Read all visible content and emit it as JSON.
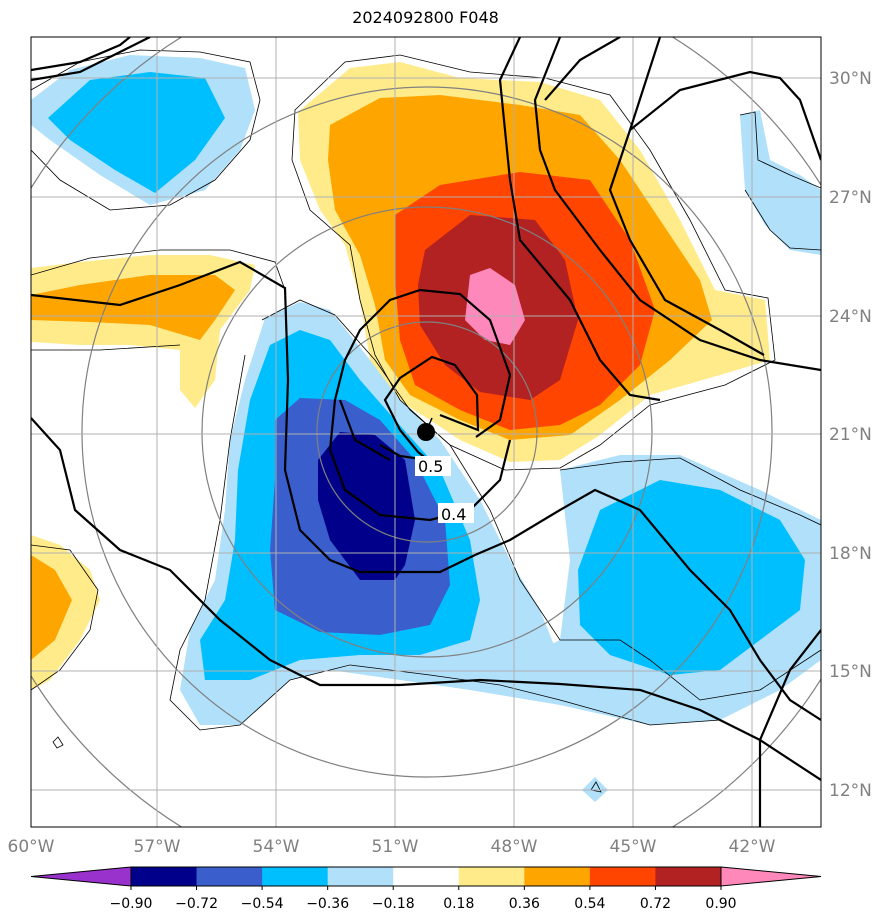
{
  "title": "2024092800 F048",
  "map": {
    "lon_labels": [
      "60°W",
      "57°W",
      "54°W",
      "51°W",
      "48°W",
      "45°W",
      "42°W"
    ],
    "lat_labels": [
      "30°N",
      "27°N",
      "24°N",
      "21°N",
      "18°N",
      "15°N",
      "12°N"
    ],
    "lon_extent": [
      -60,
      -40
    ],
    "lat_extent": [
      11,
      31
    ],
    "contour_labels": [
      "0.5",
      "0.4"
    ]
  },
  "colorbar": {
    "levels": [
      "−0.90",
      "−0.72",
      "−0.54",
      "−0.36",
      "−0.18",
      "0.18",
      "0.36",
      "0.54",
      "0.72",
      "0.90"
    ],
    "colors": [
      "#9932cc",
      "#00008b",
      "#3a5fcd",
      "#00bfff",
      "#b0e0fa",
      "#ffffff",
      "#ffeb8a",
      "#ffa500",
      "#ff4500",
      "#b22222",
      "#ff88bb"
    ]
  }
}
